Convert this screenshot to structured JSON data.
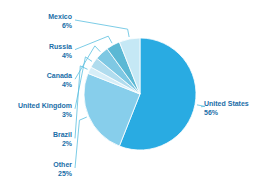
{
  "chart_data": {
    "type": "pie",
    "categories": [
      "United States",
      "Other",
      "Brazil",
      "United Kingdom",
      "Canada",
      "Russia",
      "Mexico"
    ],
    "values": [
      56,
      25,
      2,
      3,
      4,
      4,
      6
    ],
    "value_labels": [
      "56%",
      "25%",
      "2%",
      "3%",
      "4%",
      "4%",
      "6%"
    ],
    "colors": [
      "#29ABE2",
      "#87CEEB",
      "#D6EEF8",
      "#B0DCEE",
      "#7EC8E3",
      "#5BB8D4",
      "#C5E8F5"
    ],
    "data_labels": true
  }
}
